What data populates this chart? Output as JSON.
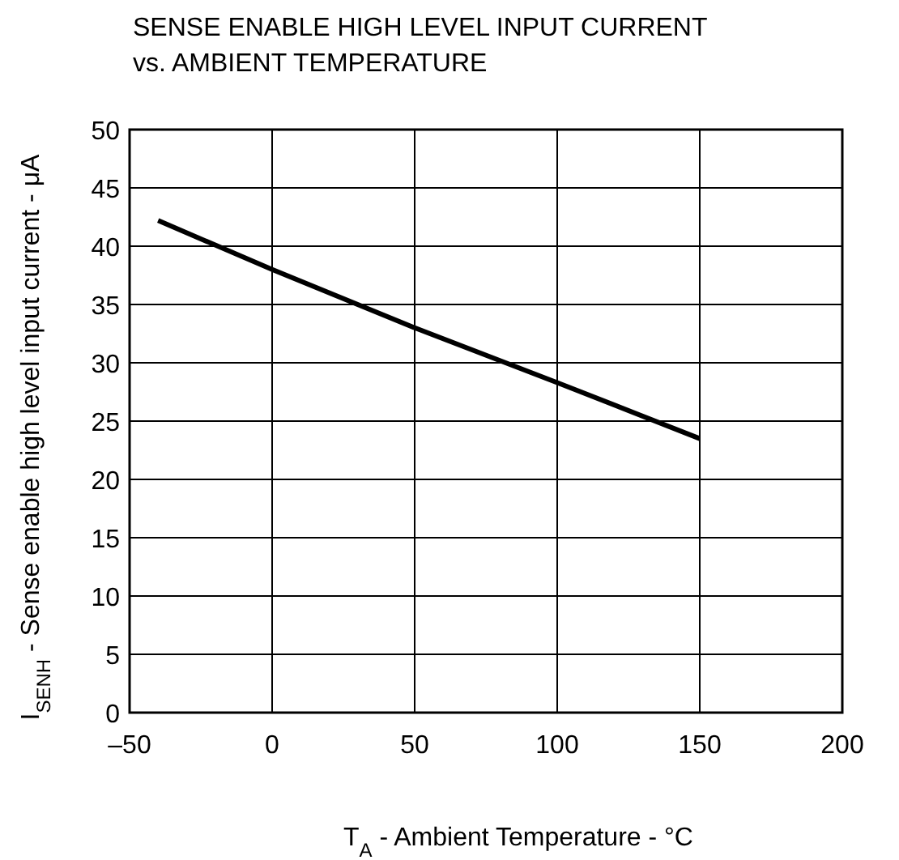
{
  "chart_data": {
    "type": "line",
    "title": "SENSE ENABLE HIGH LEVEL INPUT CURRENT\nvs. AMBIENT TEMPERATURE",
    "xlabel": "T$_{A}$ - Ambient Temperature - °C",
    "ylabel": "I$_{SENH}$ - Sense enable high level input current - μA",
    "x": [
      -40,
      0,
      50,
      100,
      150
    ],
    "series": [
      {
        "color": "#000000",
        "values": [
          42.2,
          38,
          33,
          28.3,
          23.5
        ]
      }
    ],
    "xlim": [
      -50,
      200
    ],
    "xticks": [
      {
        "value": -50,
        "label": "–50"
      },
      0,
      50,
      100,
      150,
      200
    ],
    "ylim": [
      0,
      50
    ],
    "yticks": [
      0,
      5,
      10,
      15,
      20,
      25,
      30,
      35,
      40,
      45,
      50
    ],
    "grid": true
  }
}
